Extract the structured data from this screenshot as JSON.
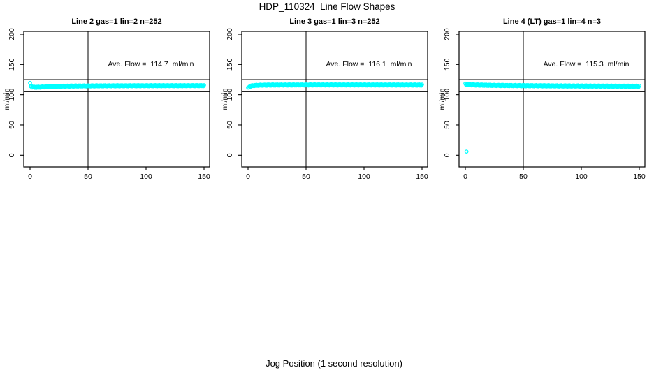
{
  "figure": {
    "main_title": "HDP_110324  Line Flow Shapes",
    "x_axis_label": "Jog Position (1 second resolution)",
    "background_color": "#ffffff",
    "point_color": "#00ffff",
    "axis_color": "#000000"
  },
  "chart_data": {
    "type": "scatter",
    "title": "HDP_110324  Line Flow Shapes",
    "xlabel": "Jog Position (1 second resolution)",
    "ylabel": "ml/min",
    "x_ticks": [
      0,
      50,
      100,
      150
    ],
    "y_ticks": [
      0,
      50,
      100,
      150,
      200
    ],
    "xlim": [
      -6,
      156
    ],
    "ylim": [
      -20,
      206
    ],
    "grid": false,
    "legend": "none",
    "marker": "open-circle",
    "reference_lines": {
      "vertical_x": 50,
      "horizontal_y_upper": 125,
      "horizontal_y_lower": 105
    },
    "panels": [
      {
        "id": "line2",
        "title": "Line 2 gas=1 lin=2 n=252",
        "annotation": "Ave. Flow =  114.7  ml/min",
        "ave_flow_ml_min": 114.7,
        "n_points": 252,
        "ylabel": "ml/min",
        "series_profile": {
          "x": [
            0,
            0.6,
            2,
            4,
            7,
            12,
            18,
            25,
            35,
            50,
            70,
            90,
            110,
            130,
            150
          ],
          "y": [
            118.5,
            114.5,
            112.6,
            112.3,
            112.4,
            112.9,
            113.4,
            113.8,
            114.2,
            114.5,
            114.7,
            114.8,
            114.9,
            114.9,
            115.0
          ]
        },
        "scatter_halfwidth": 1.0,
        "x_step": 0.6,
        "outliers": []
      },
      {
        "id": "line3",
        "title": "Line 3 gas=1 lin=3 n=252",
        "annotation": "Ave. Flow =  116.1  ml/min",
        "ave_flow_ml_min": 116.1,
        "n_points": 252,
        "ylabel": "ml/min",
        "series_profile": {
          "x": [
            0,
            0.6,
            2,
            4,
            7,
            12,
            20,
            35,
            60,
            90,
            120,
            150
          ],
          "y": [
            110.8,
            112.5,
            114.0,
            115.0,
            115.5,
            115.8,
            116.0,
            116.1,
            116.2,
            116.2,
            116.1,
            116.0
          ]
        },
        "scatter_halfwidth": 1.0,
        "x_step": 0.6,
        "outliers": []
      },
      {
        "id": "line4-lt",
        "title": "Line 4 (LT) gas=1 lin=4 n=3",
        "annotation": "Ave. Flow =  115.3  ml/min",
        "ave_flow_ml_min": 115.3,
        "n_points": 3,
        "ylabel": "ml/min",
        "series_profile": {
          "x": [
            0,
            3,
            8,
            15,
            25,
            40,
            60,
            80,
            100,
            125,
            150
          ],
          "y": [
            117.3,
            116.7,
            116.2,
            115.8,
            115.4,
            115.1,
            114.8,
            114.5,
            114.3,
            114.1,
            113.9
          ]
        },
        "scatter_halfwidth": 1.1,
        "x_step": 0.6,
        "outliers": [
          [
            1,
            6
          ]
        ]
      }
    ]
  }
}
